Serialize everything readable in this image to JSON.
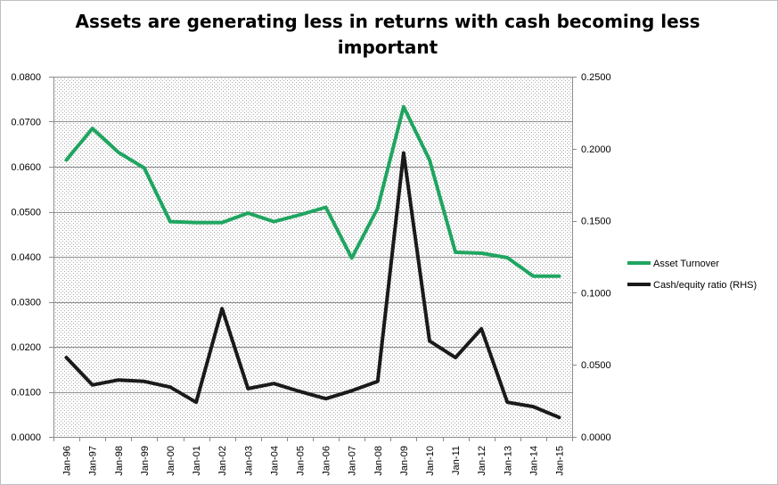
{
  "chart_data": {
    "type": "line",
    "title": "Assets are generating less in returns with cash becoming less important",
    "categories": [
      "Jan-96",
      "Jan-97",
      "Jan-98",
      "Jan-99",
      "Jan-00",
      "Jan-01",
      "Jan-02",
      "Jan-03",
      "Jan-04",
      "Jan-05",
      "Jan-06",
      "Jan-07",
      "Jan-08",
      "Jan-09",
      "Jan-10",
      "Jan-11",
      "Jan-12",
      "Jan-13",
      "Jan-14",
      "Jan-15"
    ],
    "y_left": {
      "ylim": [
        0,
        0.08
      ],
      "ticks": [
        "0.0000",
        "0.0100",
        "0.0200",
        "0.0300",
        "0.0400",
        "0.0500",
        "0.0600",
        "0.0700",
        "0.0800"
      ]
    },
    "y_right": {
      "ylim": [
        0,
        0.25
      ],
      "ticks": [
        "0.0000",
        "0.0500",
        "0.1000",
        "0.1500",
        "0.2000",
        "0.2500"
      ]
    },
    "series": [
      {
        "name": "Asset Turnover",
        "axis": "left",
        "color": "#1fa560",
        "values": [
          0.0615,
          0.0685,
          0.0632,
          0.0597,
          0.0478,
          0.0476,
          0.0476,
          0.0497,
          0.0478,
          0.0493,
          0.051,
          0.0397,
          0.0508,
          0.0733,
          0.0615,
          0.041,
          0.0408,
          0.0398,
          0.0357,
          0.0357
        ]
      },
      {
        "name": "Cash/equity ratio (RHS)",
        "axis": "right",
        "color": "#1a1a1a",
        "values": [
          0.055,
          0.036,
          0.0395,
          0.0385,
          0.0345,
          0.024,
          0.089,
          0.0335,
          0.037,
          0.0315,
          0.0265,
          0.032,
          0.0385,
          0.197,
          0.0665,
          0.055,
          0.075,
          0.024,
          0.021,
          0.0135
        ]
      }
    ],
    "grid": true,
    "legend_position": "right"
  }
}
